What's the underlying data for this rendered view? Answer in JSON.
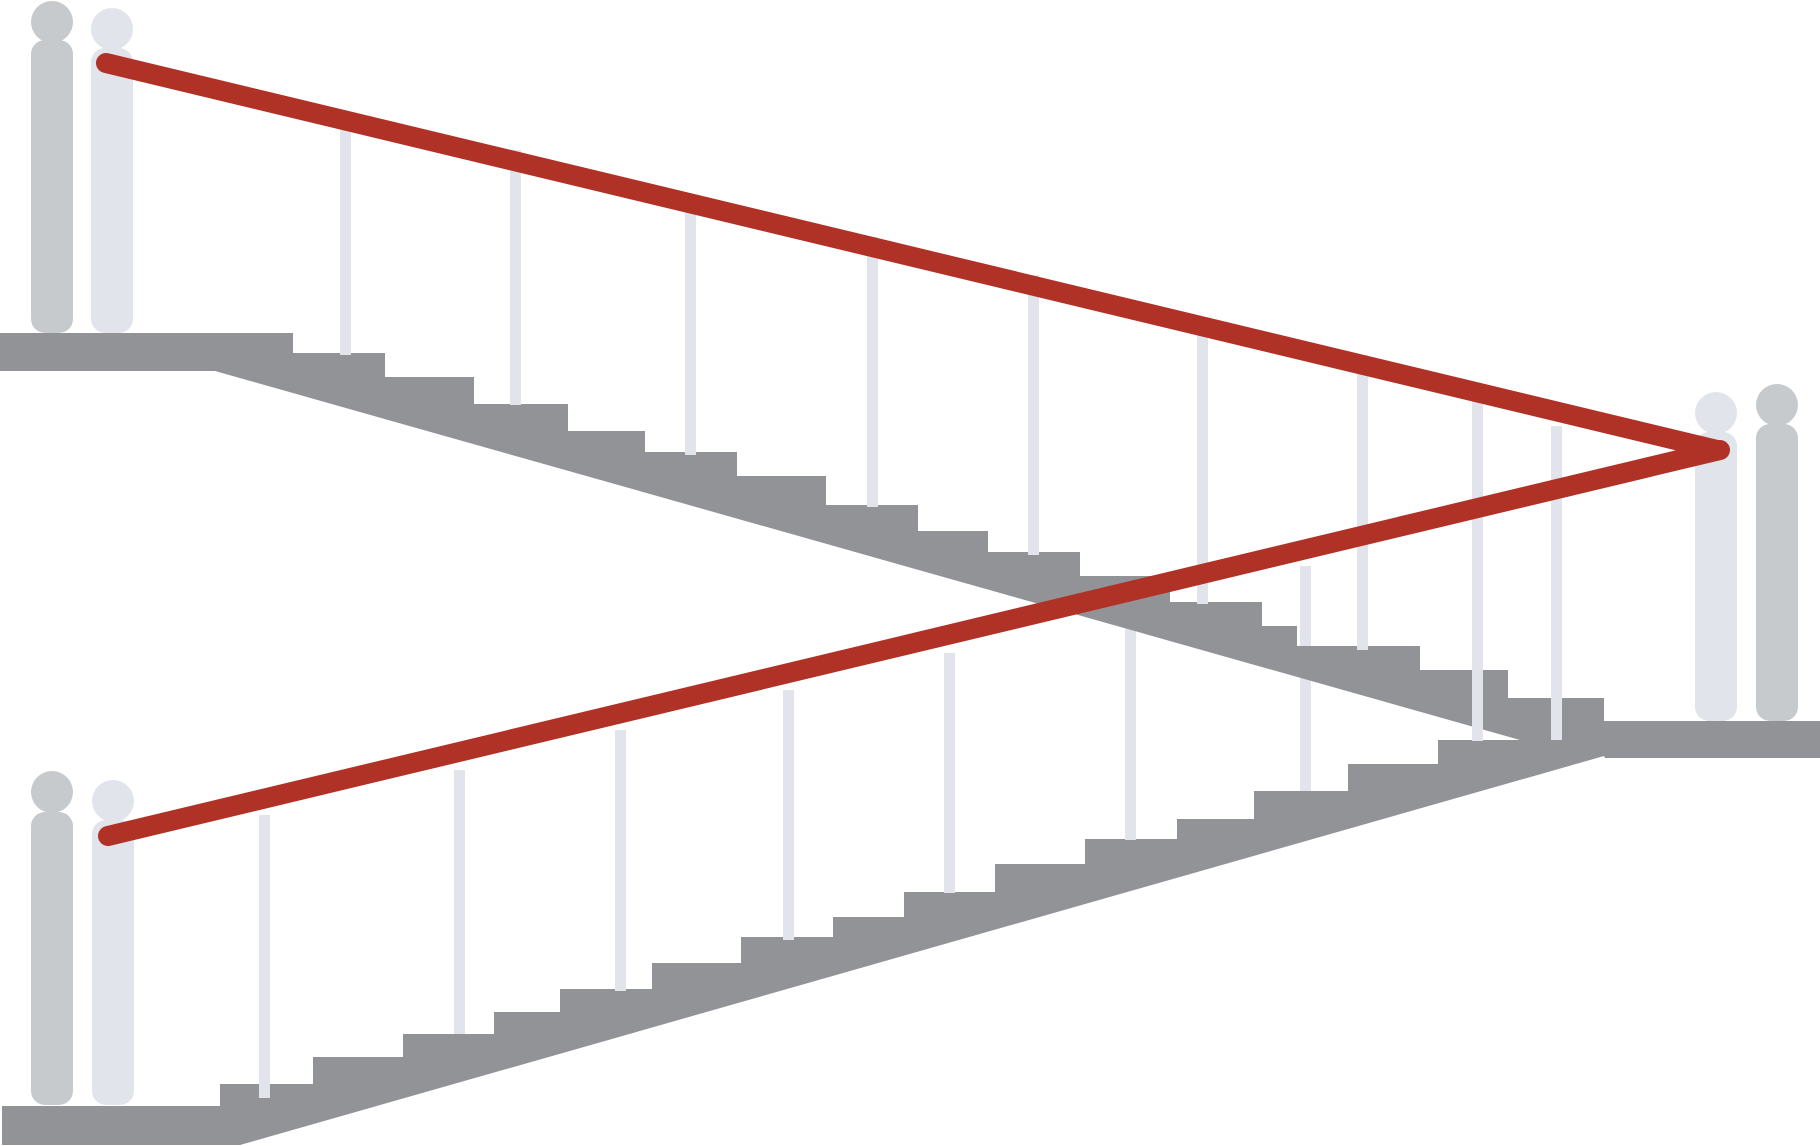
{
  "colors": {
    "background": "#ffffff",
    "stair": "#929397",
    "post_dark": "#c7cacd",
    "post_light": "#e1e4eb",
    "baluster": "#e1e4eb",
    "handrail": "#b03227"
  },
  "upper_flight": {
    "direction": "descending-left-to-right",
    "steps": 14
  },
  "lower_flight": {
    "direction": "ascending-left-to-right",
    "steps": 15
  }
}
